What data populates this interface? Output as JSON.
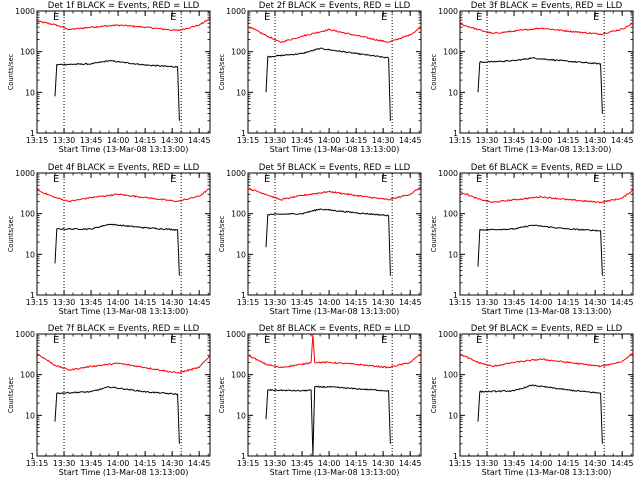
{
  "chart_data": {
    "type": "line",
    "layout": "3x3 grid of panels",
    "yscale": "log",
    "ylim": [
      1,
      1000
    ],
    "yticks": [
      "1",
      "10",
      "100",
      "1000"
    ],
    "ylabel": "Counts/sec",
    "xlabel": "Start Time (13-Mar-08 13:13:00)",
    "xlim": [
      "13:15",
      "14:51"
    ],
    "xticks": [
      "13:15",
      "13:30",
      "13:45",
      "14:00",
      "14:15",
      "14:30",
      "14:45"
    ],
    "event_marker": "E",
    "event_marker_times": [
      "13:30",
      "14:35"
    ],
    "series_colors": {
      "events": "#000000",
      "lld": "#ff0000"
    },
    "panels": [
      {
        "title": "Det 1f BLACK = Events, RED = LLD",
        "lld": {
          "x": [
            "13:15",
            "13:25",
            "13:33",
            "13:45",
            "14:00",
            "14:15",
            "14:33",
            "14:45",
            "14:51"
          ],
          "y": [
            560,
            460,
            350,
            400,
            450,
            400,
            330,
            450,
            650
          ]
        },
        "events": {
          "x": [
            "13:25",
            "13:26",
            "13:45",
            "13:55",
            "14:15",
            "14:33",
            "14:34"
          ],
          "y": [
            8,
            48,
            50,
            60,
            47,
            42,
            2
          ]
        }
      },
      {
        "title": "Det 2f BLACK = Events, RED = LLD",
        "lld": {
          "x": [
            "13:15",
            "13:25",
            "13:33",
            "13:45",
            "14:00",
            "14:15",
            "14:33",
            "14:45",
            "14:51"
          ],
          "y": [
            420,
            250,
            170,
            240,
            350,
            250,
            170,
            260,
            400
          ]
        },
        "events": {
          "x": [
            "13:25",
            "13:26",
            "13:45",
            "13:55",
            "14:15",
            "14:33",
            "14:34"
          ],
          "y": [
            10,
            75,
            90,
            120,
            90,
            70,
            2
          ]
        }
      },
      {
        "title": "Det 3f BLACK = Events, RED = LLD",
        "lld": {
          "x": [
            "13:15",
            "13:25",
            "13:33",
            "13:45",
            "14:00",
            "14:15",
            "14:33",
            "14:45",
            "14:51"
          ],
          "y": [
            480,
            350,
            280,
            320,
            380,
            320,
            270,
            360,
            500
          ]
        },
        "events": {
          "x": [
            "13:25",
            "13:26",
            "13:45",
            "13:55",
            "14:15",
            "14:33",
            "14:34"
          ],
          "y": [
            10,
            55,
            60,
            70,
            58,
            50,
            3
          ]
        }
      },
      {
        "title": "Det 4f BLACK = Events, RED = LLD",
        "lld": {
          "x": [
            "13:15",
            "13:25",
            "13:33",
            "13:45",
            "14:00",
            "14:15",
            "14:33",
            "14:45",
            "14:51"
          ],
          "y": [
            380,
            250,
            200,
            250,
            300,
            250,
            200,
            270,
            420
          ]
        },
        "events": {
          "x": [
            "13:25",
            "13:26",
            "13:45",
            "13:55",
            "14:15",
            "14:33",
            "14:34"
          ],
          "y": [
            6,
            42,
            42,
            55,
            45,
            40,
            3
          ]
        }
      },
      {
        "title": "Det 5f BLACK = Events, RED = LLD",
        "lld": {
          "x": [
            "13:15",
            "13:25",
            "13:33",
            "13:45",
            "14:00",
            "14:15",
            "14:33",
            "14:45",
            "14:51"
          ],
          "y": [
            420,
            300,
            220,
            280,
            350,
            280,
            220,
            300,
            450
          ]
        },
        "events": {
          "x": [
            "13:25",
            "13:26",
            "13:45",
            "13:55",
            "14:15",
            "14:33",
            "14:34"
          ],
          "y": [
            15,
            95,
            100,
            130,
            105,
            90,
            3
          ]
        }
      },
      {
        "title": "Det 6f BLACK = Events, RED = LLD",
        "lld": {
          "x": [
            "13:15",
            "13:25",
            "13:33",
            "13:45",
            "14:00",
            "14:15",
            "14:33",
            "14:45",
            "14:51"
          ],
          "y": [
            350,
            230,
            190,
            220,
            260,
            220,
            190,
            240,
            380
          ]
        },
        "events": {
          "x": [
            "13:25",
            "13:26",
            "13:45",
            "13:55",
            "14:15",
            "14:33",
            "14:34"
          ],
          "y": [
            5,
            40,
            42,
            52,
            42,
            38,
            3
          ]
        }
      },
      {
        "title": "Det 7f BLACK = Events, RED = LLD",
        "lld": {
          "x": [
            "13:15",
            "13:25",
            "13:33",
            "13:45",
            "14:00",
            "14:15",
            "14:33",
            "14:45",
            "14:51"
          ],
          "y": [
            330,
            170,
            130,
            160,
            190,
            150,
            110,
            150,
            300
          ]
        },
        "events": {
          "x": [
            "13:25",
            "13:26",
            "13:45",
            "13:55",
            "14:15",
            "14:33",
            "14:34"
          ],
          "y": [
            7,
            35,
            38,
            50,
            38,
            33,
            2
          ]
        }
      },
      {
        "title": "Det 8f BLACK = Events, RED = LLD",
        "lld": {
          "x": [
            "13:15",
            "13:25",
            "13:33",
            "13:45",
            "13:50",
            "13:51",
            "13:52",
            "14:00",
            "14:15",
            "14:33",
            "14:45",
            "14:51"
          ],
          "y": [
            300,
            180,
            150,
            180,
            200,
            1000,
            200,
            200,
            180,
            150,
            200,
            330
          ]
        },
        "events": {
          "x": [
            "13:25",
            "13:26",
            "13:45",
            "13:50",
            "13:51",
            "13:52",
            "14:00",
            "14:15",
            "14:33",
            "14:34"
          ],
          "y": [
            8,
            42,
            40,
            42,
            1,
            50,
            50,
            45,
            40,
            2
          ]
        }
      },
      {
        "title": "Det 9f BLACK = Events, RED = LLD",
        "lld": {
          "x": [
            "13:15",
            "13:25",
            "13:33",
            "13:45",
            "14:00",
            "14:15",
            "14:33",
            "14:45",
            "14:51"
          ],
          "y": [
            320,
            200,
            160,
            200,
            240,
            200,
            160,
            210,
            350
          ]
        },
        "events": {
          "x": [
            "13:25",
            "13:26",
            "13:45",
            "13:55",
            "14:15",
            "14:33",
            "14:34"
          ],
          "y": [
            7,
            38,
            40,
            55,
            42,
            35,
            2
          ]
        }
      }
    ]
  }
}
